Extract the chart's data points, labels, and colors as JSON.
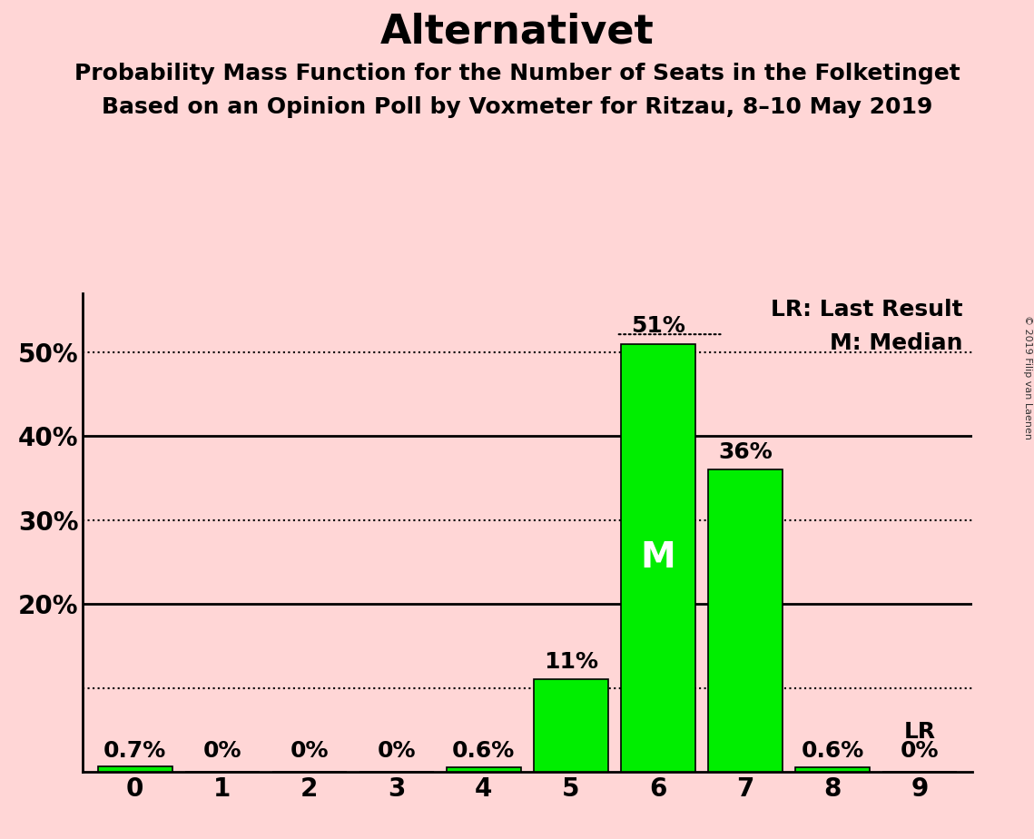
{
  "title": "Alternativet",
  "subtitle1": "Probability Mass Function for the Number of Seats in the Folketinget",
  "subtitle2": "Based on an Opinion Poll by Voxmeter for Ritzau, 8–10 May 2019",
  "copyright": "© 2019 Filip van Laenen",
  "background_color": "#ffd6d6",
  "bar_color": "#00ee00",
  "bar_edge_color": "#000000",
  "categories": [
    0,
    1,
    2,
    3,
    4,
    5,
    6,
    7,
    8,
    9
  ],
  "values": [
    0.7,
    0.0,
    0.0,
    0.0,
    0.6,
    11.0,
    51.0,
    36.0,
    0.6,
    0.0
  ],
  "value_labels": [
    "0.7%",
    "0%",
    "0%",
    "0%",
    "0.6%",
    "11%",
    "51%",
    "36%",
    "0.6%",
    "0%"
  ],
  "median_seat": 6,
  "last_result_seat": 9,
  "lr_label": "LR",
  "lr_legend": "LR: Last Result",
  "m_legend": "M: Median",
  "median_label": "M",
  "yticks": [
    0,
    10,
    20,
    30,
    40,
    50
  ],
  "ytick_labels": [
    "",
    "",
    "20%",
    "30%",
    "40%",
    "50%"
  ],
  "ylim": [
    0,
    57
  ],
  "title_fontsize": 32,
  "subtitle_fontsize": 18,
  "label_fontsize": 18,
  "tick_fontsize": 20,
  "legend_fontsize": 18,
  "median_fontsize": 28,
  "dotted_lines": [
    10,
    30,
    50
  ],
  "solid_lines": [
    20,
    40
  ]
}
